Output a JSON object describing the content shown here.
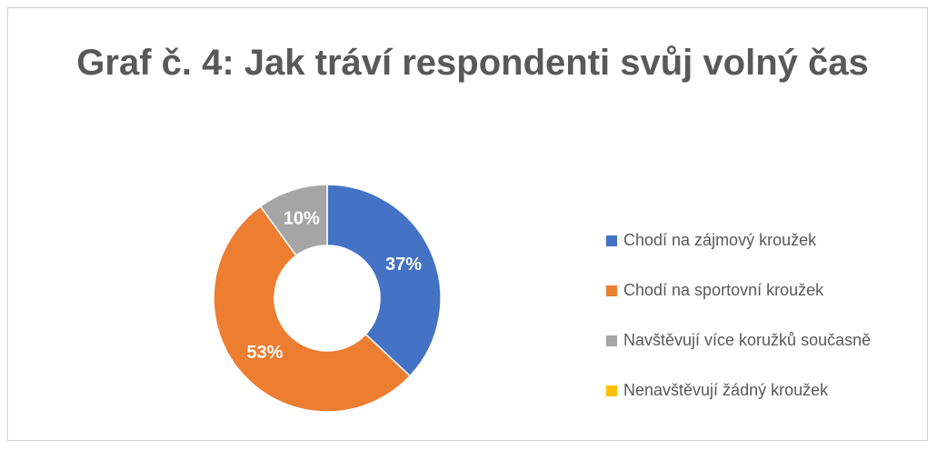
{
  "chart_data": {
    "type": "donut",
    "title": "Graf č. 4: Jak tráví respondenti svůj volný čas",
    "categories": [
      "Chodí na zájmový kroužek",
      "Chodí na sportovní kroužek",
      "Navštěvují více koružků současně",
      "Nenavštěvují žádný kroužek"
    ],
    "values": [
      37,
      53,
      10,
      0
    ],
    "value_labels": [
      "37%",
      "53%",
      "10%",
      null
    ],
    "colors": [
      "#4472c4",
      "#ed7d31",
      "#a5a5a5",
      "#ffc000"
    ],
    "legend": "right"
  }
}
